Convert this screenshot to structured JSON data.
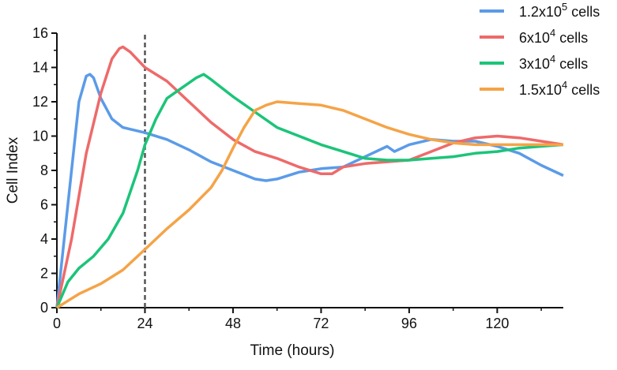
{
  "chart_data": {
    "type": "line",
    "xlabel": "Time (hours)",
    "ylabel": "Cell Index",
    "xlim": [
      0,
      138
    ],
    "ylim": [
      0,
      16
    ],
    "xticks": [
      0,
      24,
      48,
      72,
      96,
      120
    ],
    "yticks": [
      0,
      2,
      4,
      6,
      8,
      10,
      12,
      14,
      16
    ],
    "vline": {
      "x": 24,
      "style": "dashed",
      "color": "#555555"
    },
    "legend_position": "top-right",
    "series": [
      {
        "name": "1.2x10^5 cells",
        "base": "1.2x10",
        "exp": "5",
        "suffix": " cells",
        "color": "#5b9be8",
        "x": [
          0,
          3,
          6,
          8,
          9,
          10,
          12,
          15,
          18,
          24,
          30,
          36,
          42,
          48,
          54,
          57,
          60,
          66,
          72,
          78,
          84,
          90,
          92,
          96,
          102,
          108,
          114,
          120,
          126,
          132,
          138
        ],
        "y": [
          0,
          6,
          12,
          13.5,
          13.6,
          13.4,
          12.2,
          11,
          10.5,
          10.2,
          9.8,
          9.2,
          8.5,
          8.0,
          7.5,
          7.4,
          7.5,
          7.9,
          8.1,
          8.2,
          8.8,
          9.4,
          9.1,
          9.5,
          9.8,
          9.7,
          9.7,
          9.4,
          9.0,
          8.3,
          7.7
        ]
      },
      {
        "name": "6x10^4 cells",
        "base": "6x10",
        "exp": "4",
        "suffix": " cells",
        "color": "#ee6a6a",
        "x": [
          0,
          4,
          8,
          12,
          15,
          17,
          18,
          20,
          24,
          30,
          36,
          42,
          48,
          54,
          60,
          66,
          72,
          75,
          78,
          84,
          90,
          96,
          102,
          108,
          114,
          120,
          126,
          132,
          138
        ],
        "y": [
          0,
          4,
          9,
          12.5,
          14.5,
          15.1,
          15.2,
          14.9,
          14.0,
          13.2,
          12.0,
          10.8,
          9.8,
          9.1,
          8.7,
          8.2,
          7.8,
          7.8,
          8.2,
          8.4,
          8.5,
          8.6,
          9.1,
          9.6,
          9.9,
          10.0,
          9.9,
          9.7,
          9.5
        ]
      },
      {
        "name": "3x10^4 cells",
        "base": "3x10",
        "exp": "4",
        "suffix": " cells",
        "color": "#1cc479",
        "x": [
          0,
          3,
          6,
          10,
          14,
          18,
          22,
          24,
          27,
          30,
          34,
          38,
          40,
          42,
          48,
          54,
          60,
          66,
          72,
          78,
          84,
          90,
          96,
          102,
          108,
          114,
          120,
          126,
          132,
          138
        ],
        "y": [
          0,
          1.5,
          2.3,
          3,
          4,
          5.5,
          8,
          9.5,
          11,
          12.2,
          12.8,
          13.4,
          13.6,
          13.3,
          12.3,
          11.4,
          10.5,
          10.0,
          9.5,
          9.1,
          8.7,
          8.6,
          8.6,
          8.7,
          8.8,
          9.0,
          9.1,
          9.3,
          9.4,
          9.5
        ]
      },
      {
        "name": "1.5x10^4 cells",
        "base": "1.5x10",
        "exp": "4",
        "suffix": " cells",
        "color": "#f5a347",
        "x": [
          0,
          6,
          12,
          18,
          24,
          30,
          36,
          42,
          45,
          48,
          51,
          54,
          57,
          60,
          66,
          72,
          78,
          84,
          90,
          96,
          102,
          108,
          114,
          120,
          126,
          132,
          138
        ],
        "y": [
          0,
          0.8,
          1.4,
          2.2,
          3.4,
          4.6,
          5.7,
          7.0,
          8.0,
          9.3,
          10.5,
          11.5,
          11.8,
          12.0,
          11.9,
          11.8,
          11.5,
          11.0,
          10.5,
          10.1,
          9.8,
          9.6,
          9.5,
          9.5,
          9.5,
          9.5,
          9.5
        ]
      }
    ]
  }
}
